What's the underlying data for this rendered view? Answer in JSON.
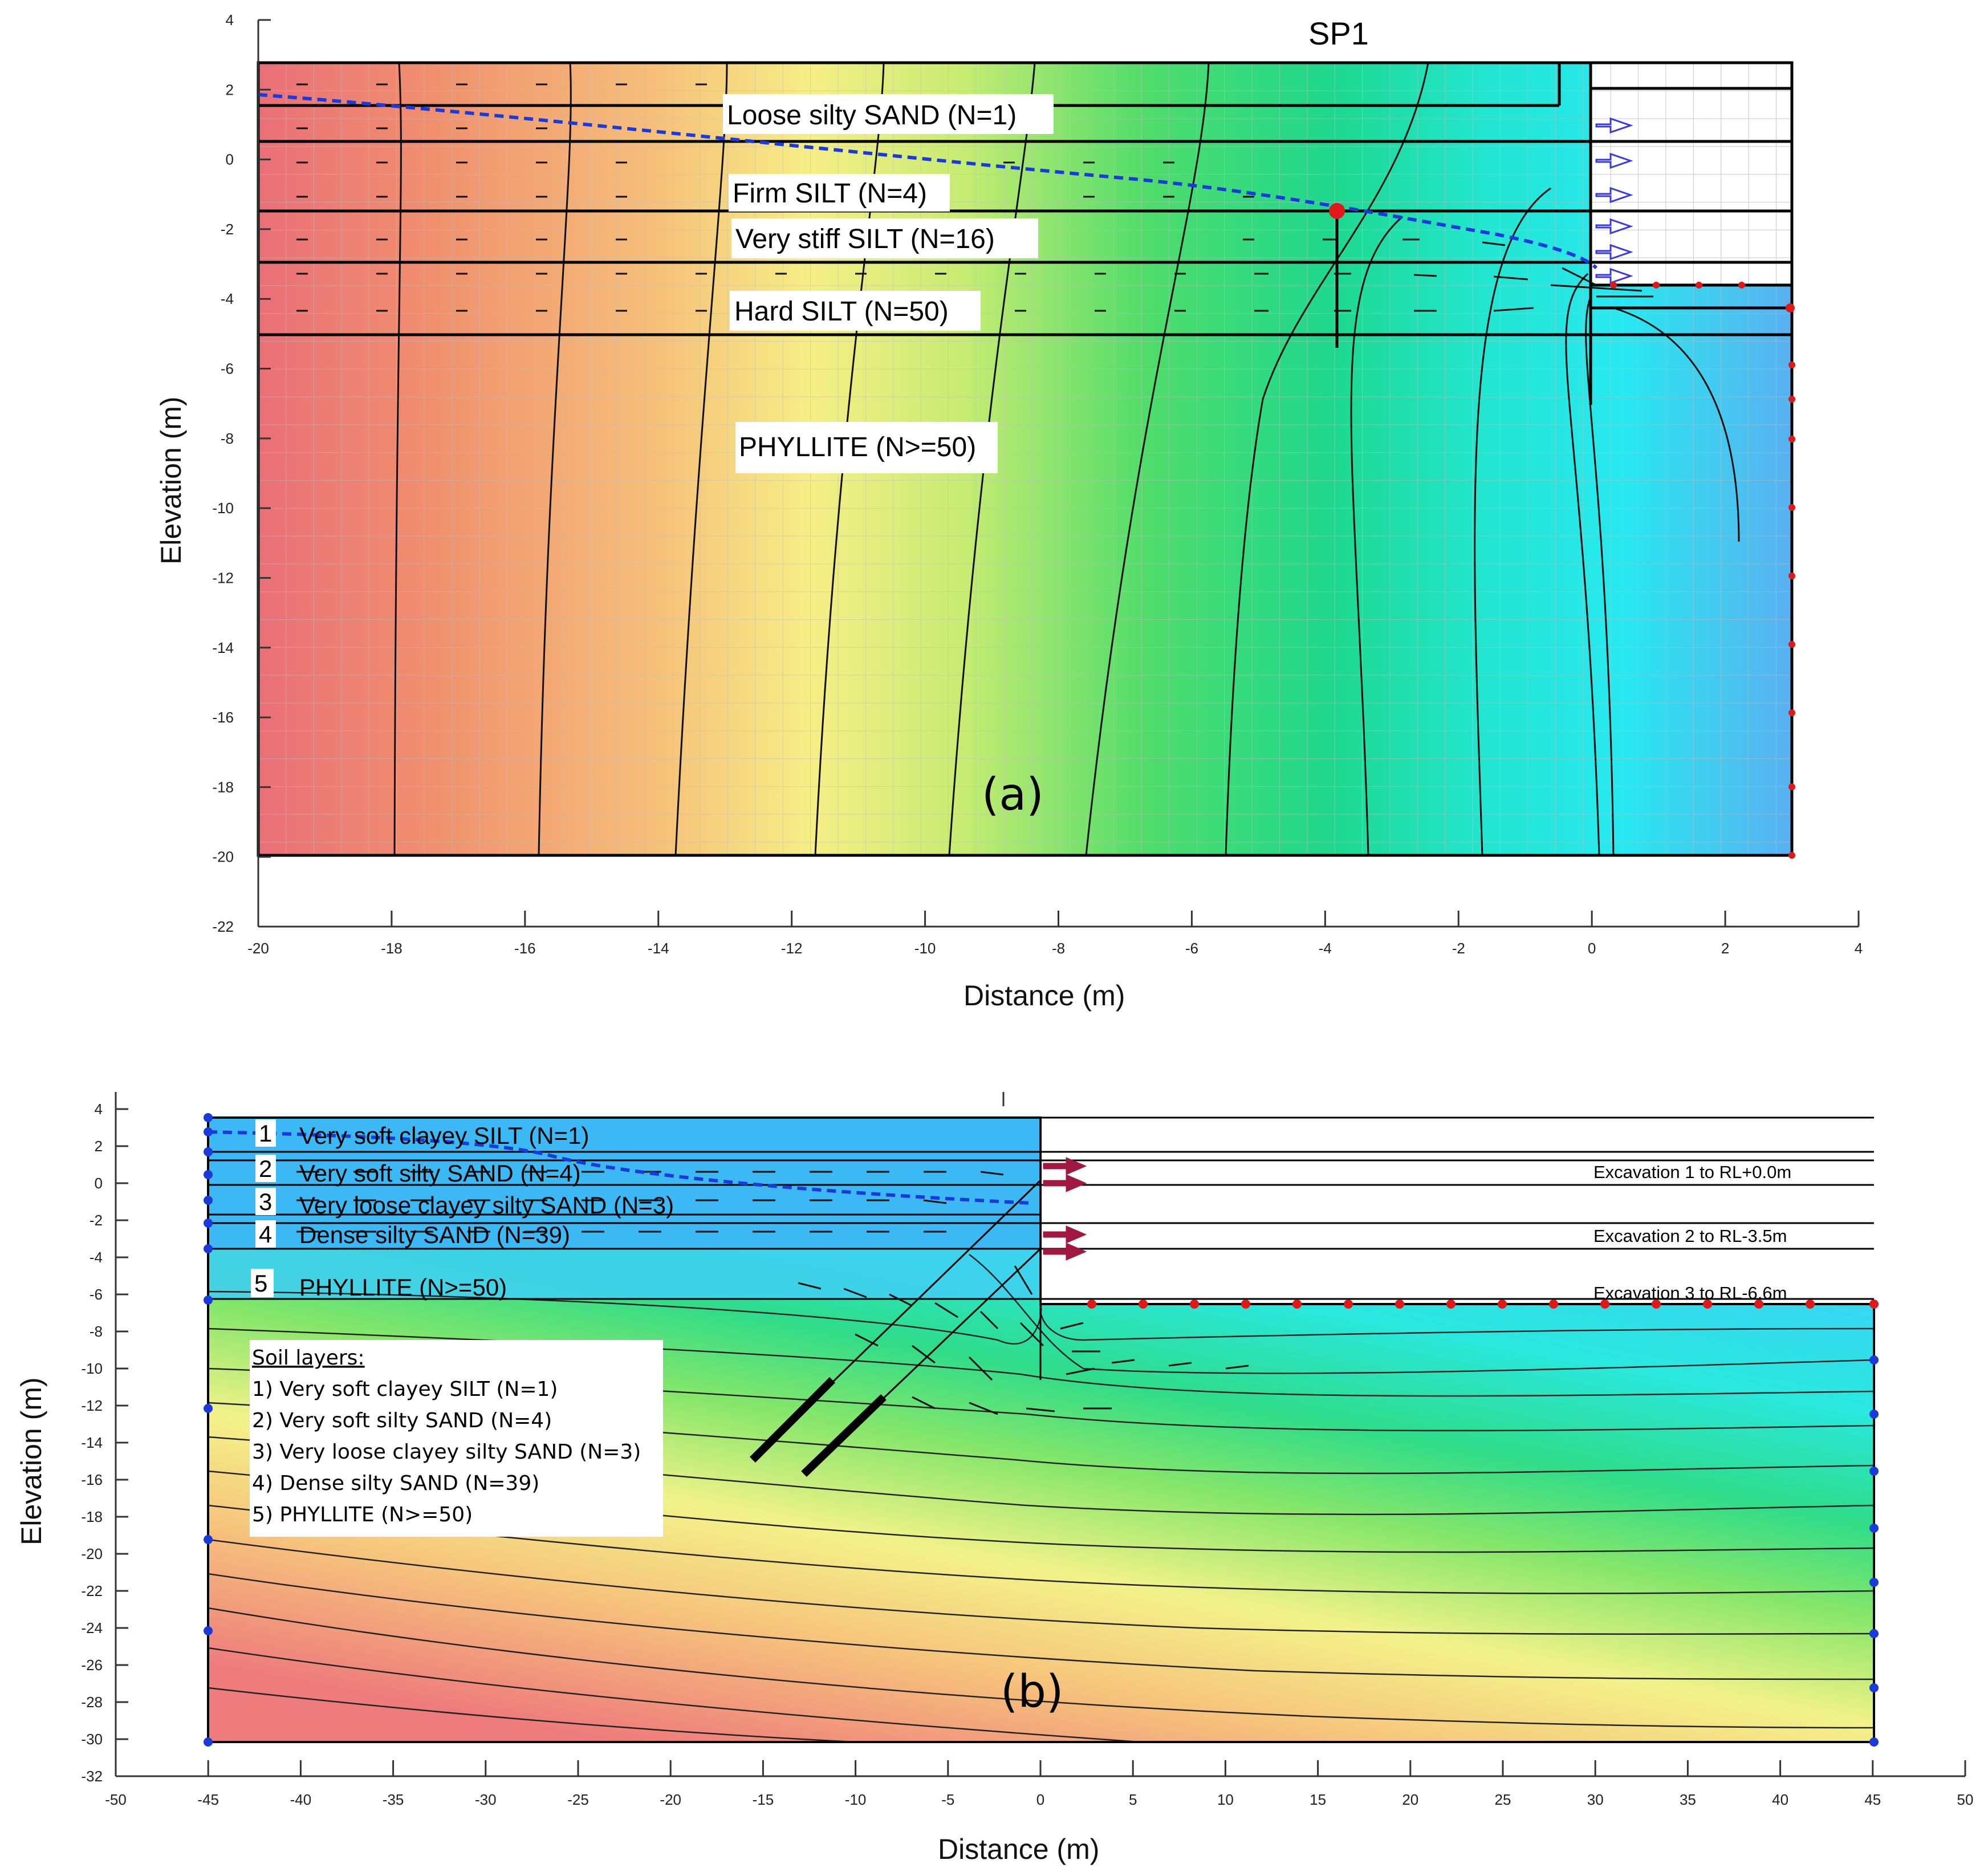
{
  "panel_a": {
    "tag": "(a)",
    "pile_label": "SP1",
    "x_axis_title": "Distance (m)",
    "y_axis_title": "Elevation (m)",
    "x_ticks": [
      "-20",
      "-18",
      "-16",
      "-14",
      "-12",
      "-10",
      "-8",
      "-6",
      "-4",
      "-2",
      "0",
      "2",
      "4"
    ],
    "y_ticks": [
      "4",
      "2",
      "0",
      "-2",
      "-4",
      "-6",
      "-8",
      "-10",
      "-12",
      "-14",
      "-16",
      "-18",
      "-20",
      "-22"
    ],
    "layer_labels": [
      "Loose silty SAND (N=1)",
      "Firm SILT (N=4)",
      "Very stiff SILT (N=16)",
      "Hard SILT (N=50)",
      "PHYLLITE (N>=50)"
    ],
    "colors": {
      "high_head": "#e8707a",
      "low_head": "#60b8f0",
      "phreatic_line": "#1a3adb",
      "nodes": "#e01818"
    }
  },
  "panel_b": {
    "tag": "(b)",
    "x_axis_title": "Distance (m)",
    "y_axis_title": "Elevation (m)",
    "x_ticks": [
      "-50",
      "-45",
      "-40",
      "-35",
      "-30",
      "-25",
      "-20",
      "-15",
      "-10",
      "-5",
      "0",
      "5",
      "10",
      "15",
      "20",
      "25",
      "30",
      "35",
      "40",
      "45",
      "50"
    ],
    "y_ticks": [
      "4",
      "2",
      "0",
      "-2",
      "-4",
      "-6",
      "-8",
      "-10",
      "-12",
      "-14",
      "-16",
      "-18",
      "-20",
      "-22",
      "-24",
      "-26",
      "-28",
      "-30",
      "-32"
    ],
    "layer_labels": [
      {
        "num": "1",
        "name": "Very soft clayey SILT (N=1)"
      },
      {
        "num": "2",
        "name": "Very soft silty SAND (N=4)"
      },
      {
        "num": "3",
        "name": "Very loose clayey silty SAND (N=3)"
      },
      {
        "num": "4",
        "name": "Dense silty SAND (N=39)"
      },
      {
        "num": "5",
        "name": "PHYLLITE (N>=50)"
      }
    ],
    "excavations": [
      "Excavation 1 to RL+0.0m",
      "Excavation 2 to RL-3.5m",
      "Excavation 3 to RL-6.6m"
    ],
    "legend": {
      "title": "Soil layers:",
      "items": [
        "1) Very soft clayey SILT (N=1)",
        "2) Very soft silty SAND (N=4)",
        "3) Very loose clayey silty SAND (N=3)",
        "4) Dense silty SAND (N=39)",
        "5) PHYLLITE (N>=50)"
      ]
    },
    "colors": {
      "high_head": "#f08080",
      "low_head": "#50b8f8",
      "phreatic_line": "#1a3adb",
      "load_arrows": "#a01840"
    }
  }
}
